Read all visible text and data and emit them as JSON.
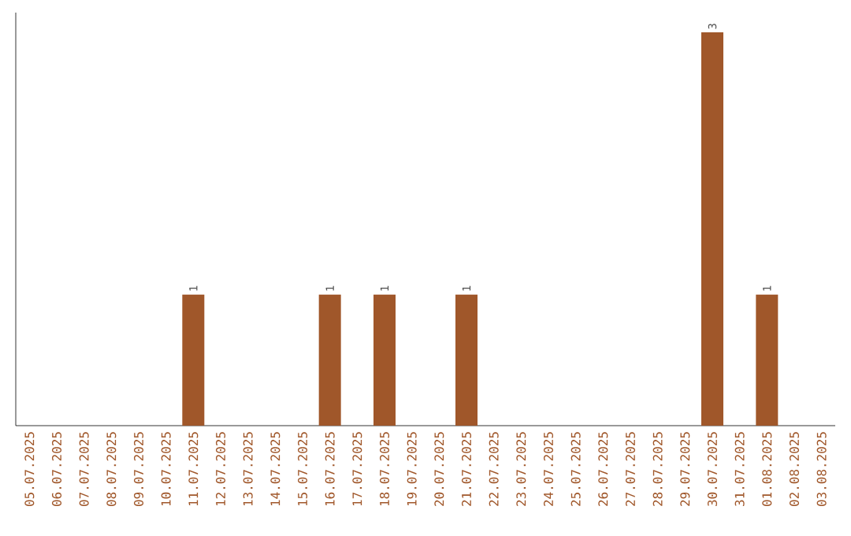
{
  "chart_data": {
    "type": "bar",
    "categories": [
      "05.07.2025",
      "06.07.2025",
      "07.07.2025",
      "08.07.2025",
      "09.07.2025",
      "10.07.2025",
      "11.07.2025",
      "12.07.2025",
      "13.07.2025",
      "14.07.2025",
      "15.07.2025",
      "16.07.2025",
      "17.07.2025",
      "18.07.2025",
      "19.07.2025",
      "20.07.2025",
      "21.07.2025",
      "22.07.2025",
      "23.07.2025",
      "24.07.2025",
      "25.07.2025",
      "26.07.2025",
      "27.07.2025",
      "28.07.2025",
      "29.07.2025",
      "30.07.2025",
      "31.07.2025",
      "01.08.2025",
      "02.08.2025",
      "03.08.2025"
    ],
    "values": [
      0,
      0,
      0,
      0,
      0,
      0,
      1,
      0,
      0,
      0,
      0,
      1,
      0,
      1,
      0,
      0,
      1,
      0,
      0,
      0,
      0,
      0,
      0,
      0,
      0,
      3,
      0,
      1,
      0,
      0
    ],
    "value_labels": [
      null,
      null,
      null,
      null,
      null,
      null,
      "1",
      null,
      null,
      null,
      null,
      "1",
      null,
      "1",
      null,
      null,
      "1",
      null,
      null,
      null,
      null,
      null,
      null,
      null,
      null,
      "3",
      null,
      "1",
      null,
      null
    ],
    "color": "#a0572a",
    "tick_labels": "x"
  }
}
